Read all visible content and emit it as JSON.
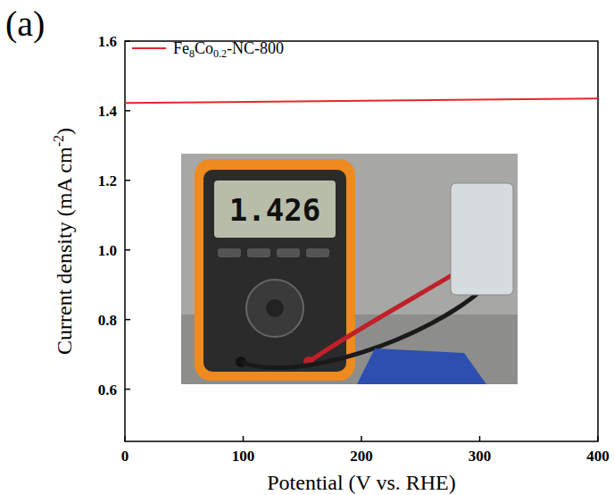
{
  "chart_data": {
    "type": "line",
    "panel_label": "(a)",
    "x_label": "Potential (V vs. RHE)",
    "y_label": "Current density (mA cm-2)",
    "x": [
      0,
      400
    ],
    "series": [
      {
        "name": "Fe8Co0.2-NC-800",
        "color": "#e8262b",
        "values": [
          1.422,
          1.435
        ]
      }
    ],
    "xlim": [
      0,
      400
    ],
    "xticks": [
      0,
      100,
      200,
      300,
      400
    ],
    "ylim": [
      0.45,
      1.6
    ],
    "yticks": [
      0.6,
      0.8,
      {
        "value": 1.0,
        "label": "1.0"
      },
      1.2,
      1.4,
      1.6
    ],
    "legend": "upper left",
    "grid": false,
    "annotations": [
      "1.426"
    ]
  }
}
